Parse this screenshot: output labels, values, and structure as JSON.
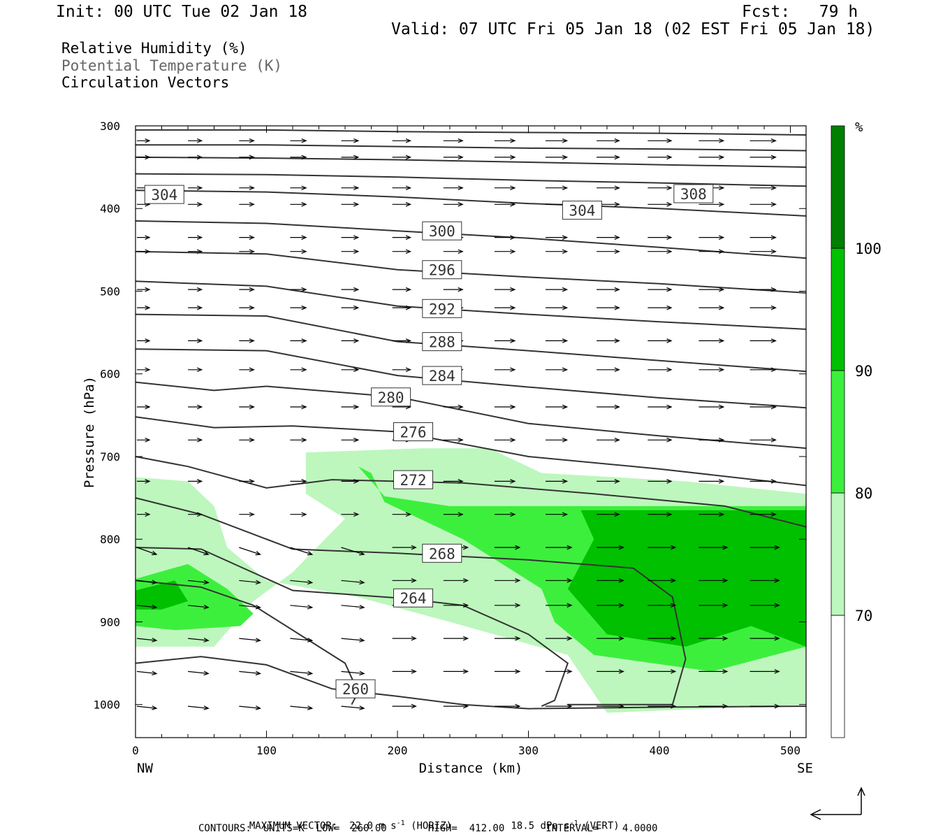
{
  "header": {
    "init": "Init: 00 UTC Tue 02 Jan 18",
    "fcst": "Fcst:   79 h",
    "valid": "Valid: 07 UTC Fri 05 Jan 18 (02 EST Fri 05 Jan 18)"
  },
  "legend": {
    "rh": "Relative Humidity (%)",
    "theta": "Potential Temperature (K)",
    "vectors": "Circulation Vectors"
  },
  "footer": {
    "maxvec_label": "MAXIMUM VECTOR:",
    "maxvec_horiz": "22.0 m s",
    "maxvec_horiz_sup": "-1",
    "maxvec_horiz_unit": " (HORIZ)",
    "maxvec_vert": "18.5 dPa s",
    "maxvec_vert_sup": "-1",
    "maxvec_vert_unit": " (VERT)",
    "contours": "CONTOURS:  UNITS=K  LOW=  260.00       HIGH=  412.00       INTERVAL=    4.0000"
  },
  "chart_data": {
    "type": "cross-section",
    "xlabel": "Distance (km)",
    "ylabel": "Pressure (hPa)",
    "xlim": [
      0,
      512
    ],
    "ylim": [
      1040,
      300
    ],
    "x_ticks": [
      0,
      100,
      200,
      300,
      400,
      500
    ],
    "y_ticks": [
      300,
      400,
      500,
      600,
      700,
      800,
      900,
      1000
    ],
    "x_end_labels": {
      "left": "NW",
      "right": "SE"
    },
    "colorbar": {
      "unit": "%",
      "levels": [
        70,
        80,
        90,
        100
      ],
      "colors": [
        "#ffffff",
        "#bdf7bd",
        "#3def3d",
        "#00c000",
        "#007f00"
      ]
    },
    "theta_contour_labels": [
      {
        "text": "304",
        "x": 22,
        "p": 383
      },
      {
        "text": "308",
        "x": 426,
        "p": 382
      },
      {
        "text": "304",
        "x": 341,
        "p": 402
      },
      {
        "text": "300",
        "x": 234,
        "p": 427
      },
      {
        "text": "296",
        "x": 234,
        "p": 474
      },
      {
        "text": "292",
        "x": 234,
        "p": 521
      },
      {
        "text": "288",
        "x": 234,
        "p": 561
      },
      {
        "text": "284",
        "x": 234,
        "p": 602
      },
      {
        "text": "280",
        "x": 195,
        "p": 628
      },
      {
        "text": "276",
        "x": 212,
        "p": 670
      },
      {
        "text": "272",
        "x": 212,
        "p": 728
      },
      {
        "text": "268",
        "x": 234,
        "p": 817
      },
      {
        "text": "264",
        "x": 212,
        "p": 871
      },
      {
        "text": "260",
        "x": 168,
        "p": 981
      }
    ],
    "theta_isentropes": [
      {
        "x": [
          0,
          100,
          200,
          300,
          400,
          512
        ],
        "p": [
          305,
          305,
          307,
          308,
          309,
          311
        ]
      },
      {
        "x": [
          0,
          100,
          200,
          300,
          400,
          512
        ],
        "p": [
          323,
          323,
          325,
          327,
          328,
          330
        ]
      },
      {
        "x": [
          0,
          100,
          200,
          300,
          400,
          512
        ],
        "p": [
          338,
          339,
          341,
          344,
          347,
          350
        ]
      },
      {
        "x": [
          0,
          100,
          200,
          300,
          400,
          512
        ],
        "p": [
          358,
          359,
          362,
          366,
          369,
          373
        ]
      },
      {
        "x": [
          0,
          100,
          200,
          300,
          400,
          512
        ],
        "p": [
          378,
          380,
          386,
          394,
          400,
          409
        ]
      },
      {
        "x": [
          0,
          100,
          200,
          300,
          400,
          512
        ],
        "p": [
          415,
          418,
          427,
          436,
          447,
          460
        ]
      },
      {
        "x": [
          0,
          100,
          200,
          300,
          400,
          512
        ],
        "p": [
          452,
          455,
          474,
          483,
          491,
          502
        ]
      },
      {
        "x": [
          0,
          100,
          200,
          300,
          400,
          512
        ],
        "p": [
          488,
          494,
          518,
          528,
          537,
          546
        ]
      },
      {
        "x": [
          0,
          100,
          200,
          300,
          400,
          512
        ],
        "p": [
          528,
          530,
          561,
          572,
          584,
          597
        ]
      },
      {
        "x": [
          0,
          100,
          200,
          300,
          400,
          512
        ],
        "p": [
          570,
          572,
          602,
          616,
          629,
          641
        ]
      },
      {
        "x": [
          0,
          60,
          100,
          200,
          300,
          400,
          512
        ],
        "p": [
          610,
          620,
          615,
          628,
          660,
          675,
          690
        ]
      },
      {
        "x": [
          0,
          60,
          120,
          200,
          300,
          400,
          512
        ],
        "p": [
          652,
          665,
          663,
          670,
          700,
          715,
          735
        ]
      },
      {
        "x": [
          0,
          40,
          100,
          150,
          250,
          350,
          450,
          512
        ],
        "p": [
          700,
          712,
          738,
          728,
          732,
          745,
          760,
          785
        ]
      },
      {
        "x": [
          0,
          50,
          120,
          200,
          300,
          380,
          410,
          420,
          410,
          330
        ],
        "p": [
          750,
          770,
          812,
          817,
          825,
          835,
          870,
          945,
          1000,
          1000
        ]
      },
      {
        "x": [
          0,
          50,
          120,
          200,
          250,
          300,
          330,
          320,
          310
        ],
        "p": [
          810,
          812,
          862,
          871,
          880,
          915,
          950,
          995,
          1002
        ]
      },
      {
        "x": [
          0,
          50,
          90,
          130,
          160,
          170,
          165
        ],
        "p": [
          850,
          858,
          880,
          920,
          950,
          985,
          1000
        ]
      },
      {
        "x": [
          0,
          50,
          100,
          150,
          200,
          250,
          300,
          410,
          512
        ],
        "p": [
          950,
          942,
          952,
          981,
          990,
          1000,
          1005,
          1003,
          1002
        ]
      }
    ],
    "rh_regions": [
      {
        "level": "70-80",
        "x": [
          0,
          40,
          60,
          70,
          100,
          170,
          240,
          330,
          360,
          512,
          512,
          420,
          310,
          270,
          220,
          130,
          130,
          160,
          120,
          90,
          60,
          0
        ],
        "p": [
          725,
          730,
          760,
          810,
          850,
          870,
          900,
          940,
          1010,
          1000,
          745,
          730,
          720,
          690,
          690,
          695,
          745,
          775,
          840,
          875,
          930,
          930
        ]
      },
      {
        "level": "80-90",
        "x": [
          170,
          190,
          240,
          330,
          512,
          512,
          440,
          350,
          320,
          310,
          250,
          190,
          180
        ],
        "p": [
          712,
          748,
          760,
          760,
          760,
          930,
          960,
          940,
          900,
          860,
          800,
          755,
          720
        ]
      },
      {
        "level": "80-90",
        "x": [
          0,
          40,
          70,
          90,
          80,
          30,
          0
        ],
        "p": [
          848,
          830,
          860,
          890,
          905,
          910,
          905
        ]
      },
      {
        "level": "90-100",
        "x": [
          340,
          512,
          512,
          470,
          420,
          360,
          330,
          350
        ],
        "p": [
          765,
          765,
          930,
          905,
          930,
          915,
          860,
          800
        ]
      },
      {
        "level": "90-100",
        "x": [
          0,
          30,
          40,
          20,
          0
        ],
        "p": [
          862,
          850,
          875,
          885,
          885
        ]
      }
    ],
    "circulation_vectors": "approx. 14 x 15 grid of arrows, mostly horizontal NW->SE, strongest near surface on SE side",
    "colors": {
      "rh_70_80": "#bdf7bd",
      "rh_80_90": "#3def3d",
      "rh_90_100": "#00c000",
      "rh_100": "#007f00",
      "theta": "#333333"
    }
  }
}
